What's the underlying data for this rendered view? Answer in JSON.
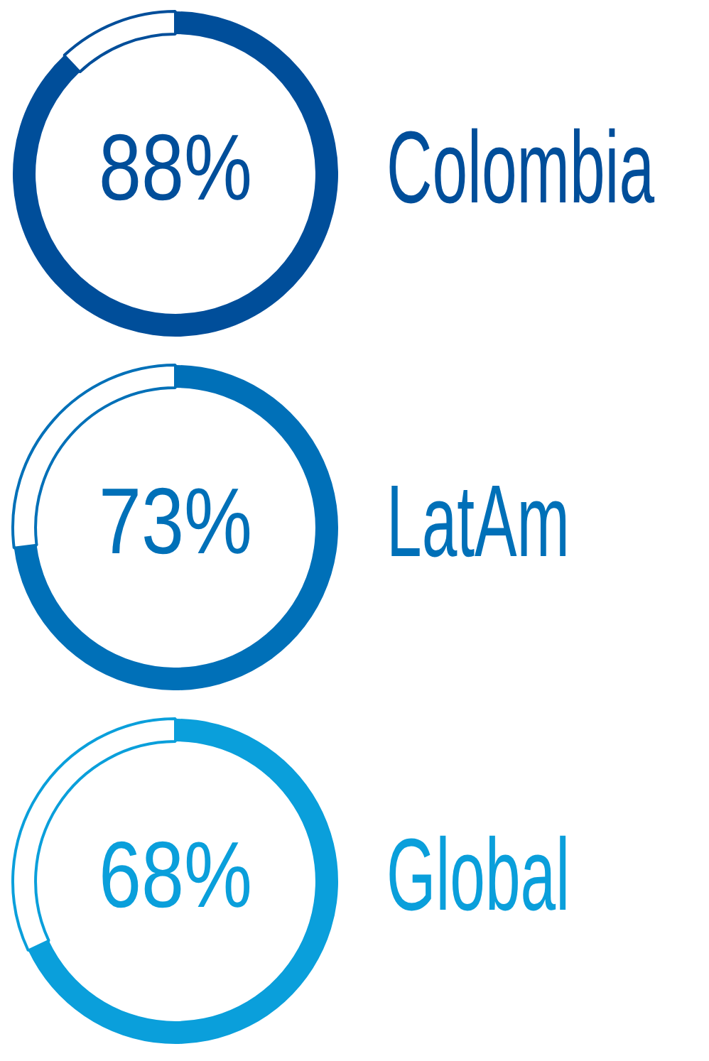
{
  "chart_data": [
    {
      "type": "donut",
      "categories": [
        "Colombia",
        null
      ],
      "values": [
        88,
        12
      ],
      "colors": [
        "#004e9a",
        "#004e9a"
      ],
      "value_labels": [
        "88%",
        null
      ]
    },
    {
      "type": "donut",
      "categories": [
        "LatAm",
        null
      ],
      "values": [
        73,
        27
      ],
      "colors": [
        "#0070b8",
        "#0070b8"
      ],
      "value_labels": [
        "73%",
        null
      ]
    },
    {
      "type": "donut",
      "categories": [
        "Global",
        null
      ],
      "values": [
        68,
        32
      ],
      "colors": [
        "#0a9fdb",
        "#0a9fdb"
      ],
      "value_labels": [
        "68%",
        null
      ]
    }
  ]
}
